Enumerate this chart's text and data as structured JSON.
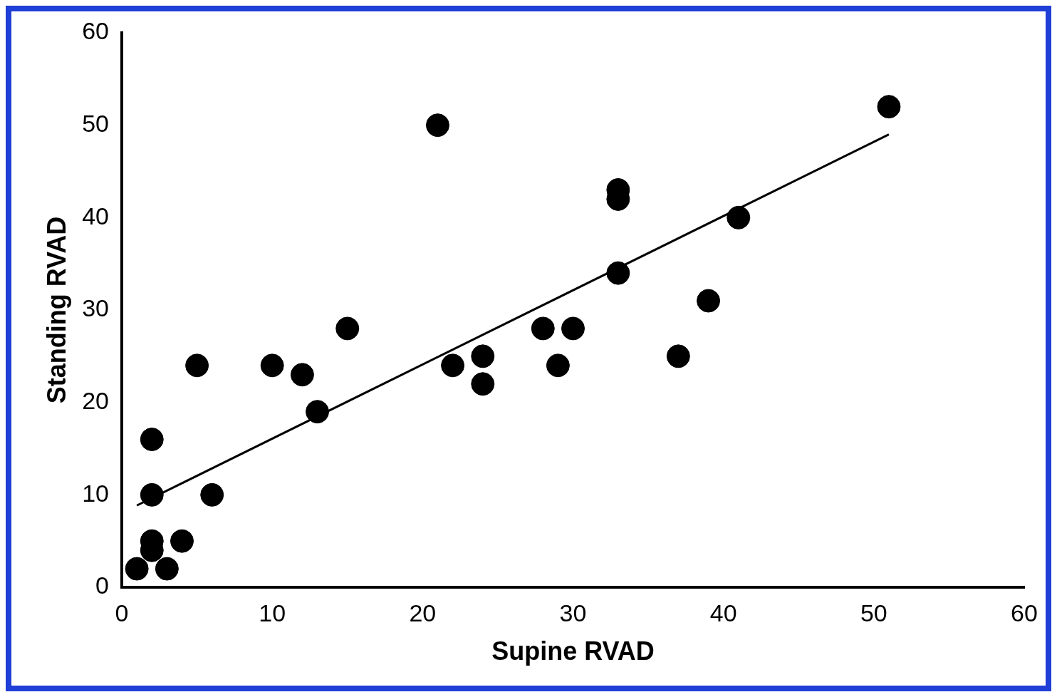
{
  "chart_data": {
    "type": "scatter",
    "xlabel": "Supine RVAD",
    "ylabel": "Standing RVAD",
    "xlim": [
      0,
      60
    ],
    "ylim": [
      0,
      60
    ],
    "xticks": [
      0,
      10,
      20,
      30,
      40,
      50,
      60
    ],
    "yticks": [
      0,
      10,
      20,
      30,
      40,
      50,
      60
    ],
    "grid": false,
    "legend": false,
    "marker": "circle",
    "series": [
      {
        "type": "scatter",
        "color": "#000000",
        "x": [
          1,
          3,
          2,
          2,
          4,
          2,
          6,
          2,
          5,
          10,
          12,
          13,
          15,
          21,
          22,
          24,
          24,
          28,
          29,
          30,
          33,
          33,
          33,
          37,
          39,
          41,
          51
        ],
        "values": [
          2,
          2,
          5,
          4,
          5,
          10,
          10,
          16,
          24,
          24,
          23,
          19,
          28,
          50,
          24,
          25,
          22,
          28,
          24,
          28,
          34,
          43,
          42,
          25,
          31,
          40,
          52
        ]
      },
      {
        "type": "line",
        "color": "#000000",
        "x": [
          1,
          51
        ],
        "values": [
          8.85,
          49
        ],
        "marker": "none"
      }
    ]
  }
}
